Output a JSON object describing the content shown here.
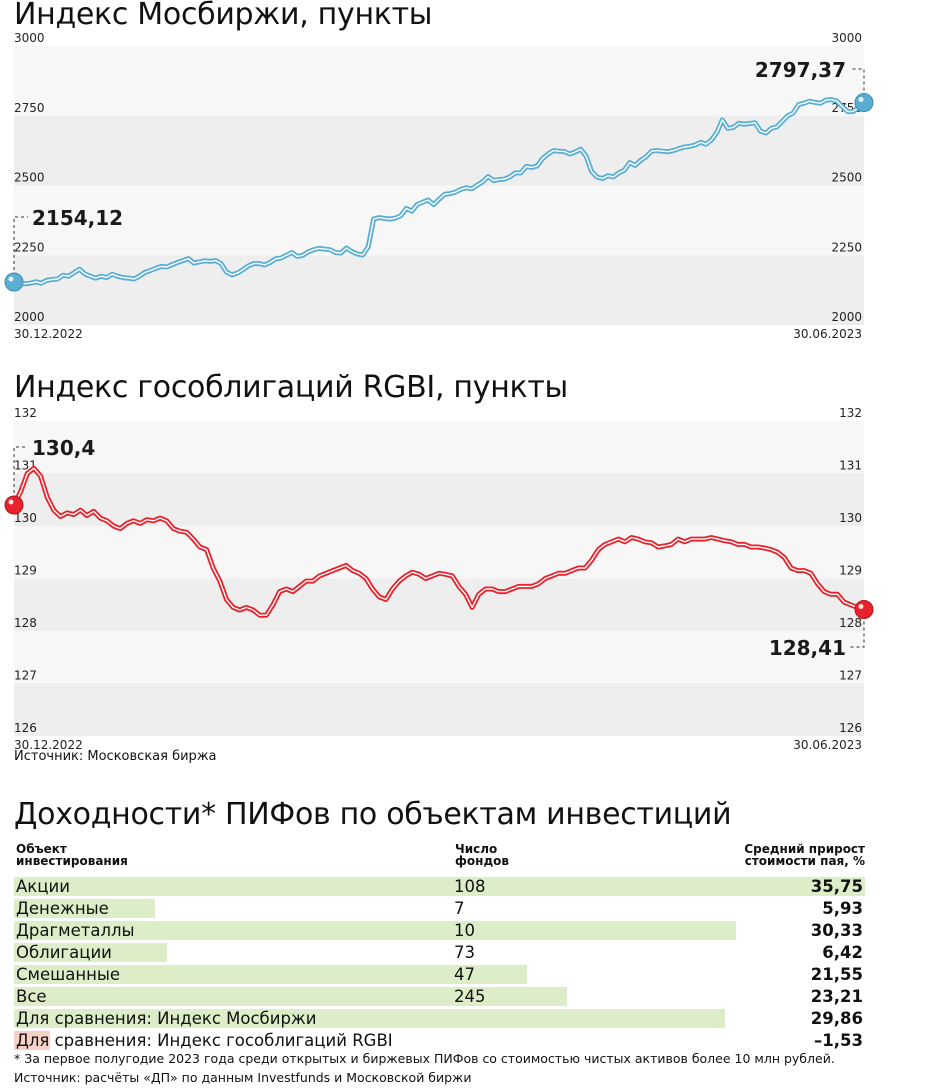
{
  "moex": {
    "title": "Индекс Мосбиржи, пункты",
    "y_ticks": [
      "3000",
      "2750",
      "2500",
      "2250",
      "2000"
    ],
    "x_start": "30.12.2022",
    "x_end": "30.06.2023",
    "start_label": "2154,12",
    "end_label": "2797,37"
  },
  "rgbi": {
    "title": "Индекс гособлигаций RGBI, пункты",
    "y_ticks": [
      "132",
      "131",
      "130",
      "129",
      "128",
      "127",
      "126"
    ],
    "x_start": "30.12.2022",
    "x_end": "30.06.2023",
    "start_label": "130,4",
    "end_label": "128,41",
    "source": "Источник: Московская биржа"
  },
  "table": {
    "title": "Доходности* ПИФов по объектам инвестиций",
    "col_object": [
      "Объект",
      "инвестирования"
    ],
    "col_count": [
      "Число",
      "фондов"
    ],
    "col_growth": [
      "Средний прирост",
      "стоимости пая, %"
    ],
    "rows": [
      {
        "name": "Акции",
        "count": "108",
        "value": "35,75"
      },
      {
        "name": "Денежные",
        "count": "7",
        "value": "5,93"
      },
      {
        "name": "Драгметаллы",
        "count": "10",
        "value": "30,33"
      },
      {
        "name": "Облигации",
        "count": "73",
        "value": "6,42"
      },
      {
        "name": "Смешанные",
        "count": "47",
        "value": "21,55"
      },
      {
        "name": "Все",
        "count": "245",
        "value": "23,21"
      },
      {
        "name": "Для сравнения: Индекс Мосбиржи",
        "count": "",
        "value": "29,86"
      },
      {
        "name": "Для сравнения: Индекс гособлигаций RGBI",
        "count": "",
        "value": "–1,53"
      }
    ],
    "footnote": "* За первое полугодие 2023 года среди открытых и биржевых ПИФов со стоимостью чистых активов более 10 млн рублей.",
    "source": "Источник: расчёты «ДП» по данным  Investfunds и Московской биржи"
  },
  "chart_data": [
    {
      "type": "line",
      "title": "Индекс Мосбиржи, пункты",
      "color": "#5aaed2",
      "x_range": [
        "30.12.2022",
        "30.06.2023"
      ],
      "ylim": [
        2000,
        3000
      ],
      "y_ticks": [
        2000,
        2250,
        2500,
        2750,
        3000
      ],
      "start_value": 2154.12,
      "end_value": 2797.37,
      "values": [
        2154.12,
        2150,
        2148,
        2150,
        2155,
        2150,
        2160,
        2163,
        2165,
        2178,
        2175,
        2187,
        2200,
        2183,
        2175,
        2168,
        2175,
        2170,
        2182,
        2175,
        2170,
        2168,
        2165,
        2175,
        2188,
        2195,
        2203,
        2210,
        2208,
        2216,
        2224,
        2231,
        2238,
        2222,
        2226,
        2230,
        2228,
        2231,
        2220,
        2190,
        2180,
        2186,
        2198,
        2212,
        2220,
        2220,
        2215,
        2224,
        2237,
        2240,
        2250,
        2260,
        2246,
        2250,
        2262,
        2270,
        2275,
        2272,
        2270,
        2260,
        2258,
        2276,
        2263,
        2255,
        2251,
        2280,
        2380,
        2385,
        2382,
        2380,
        2383,
        2392,
        2418,
        2408,
        2432,
        2440,
        2448,
        2432,
        2450,
        2468,
        2471,
        2476,
        2486,
        2492,
        2488,
        2501,
        2513,
        2532,
        2518,
        2521,
        2523,
        2531,
        2545,
        2545,
        2568,
        2565,
        2570,
        2596,
        2613,
        2625,
        2623,
        2622,
        2613,
        2620,
        2630,
        2605,
        2550,
        2530,
        2525,
        2535,
        2531,
        2545,
        2555,
        2582,
        2572,
        2590,
        2603,
        2623,
        2625,
        2623,
        2621,
        2625,
        2632,
        2638,
        2640,
        2645,
        2655,
        2648,
        2663,
        2690,
        2735,
        2705,
        2708,
        2723,
        2720,
        2722,
        2725,
        2695,
        2688,
        2705,
        2710,
        2730,
        2750,
        2760,
        2790,
        2795,
        2802,
        2798,
        2795,
        2806,
        2808,
        2803,
        2783,
        2765,
        2765,
        2780,
        2797.37
      ]
    },
    {
      "type": "line",
      "title": "Индекс гособлигаций RGBI, пункты",
      "color": "#e8222c",
      "x_range": [
        "30.12.2022",
        "30.06.2023"
      ],
      "ylim": [
        126,
        132
      ],
      "y_ticks": [
        126,
        127,
        128,
        129,
        130,
        131,
        132
      ],
      "start_value": 130.4,
      "end_value": 128.41,
      "values": [
        130.4,
        130.65,
        131.0,
        131.1,
        130.95,
        130.55,
        130.3,
        130.18,
        130.25,
        130.22,
        130.3,
        130.2,
        130.28,
        130.15,
        130.1,
        130.0,
        129.95,
        130.05,
        130.1,
        130.05,
        130.12,
        130.1,
        130.15,
        130.1,
        129.95,
        129.9,
        129.88,
        129.75,
        129.6,
        129.55,
        129.2,
        128.95,
        128.6,
        128.45,
        128.4,
        128.45,
        128.4,
        128.3,
        128.3,
        128.5,
        128.75,
        128.8,
        128.75,
        128.85,
        128.95,
        128.95,
        129.05,
        129.1,
        129.15,
        129.2,
        129.25,
        129.15,
        129.1,
        129.0,
        128.8,
        128.65,
        128.6,
        128.8,
        128.95,
        129.05,
        129.12,
        129.08,
        129.0,
        129.05,
        129.1,
        129.08,
        129.05,
        128.85,
        128.7,
        128.45,
        128.7,
        128.8,
        128.8,
        128.75,
        128.75,
        128.8,
        128.85,
        128.85,
        128.85,
        128.9,
        129.0,
        129.05,
        129.1,
        129.1,
        129.15,
        129.2,
        129.2,
        129.35,
        129.55,
        129.65,
        129.7,
        129.75,
        129.7,
        129.78,
        129.75,
        129.7,
        129.68,
        129.6,
        129.62,
        129.65,
        129.75,
        129.7,
        129.75,
        129.75,
        129.75,
        129.78,
        129.75,
        129.72,
        129.7,
        129.65,
        129.65,
        129.6,
        129.6,
        129.58,
        129.55,
        129.5,
        129.4,
        129.2,
        129.15,
        129.15,
        129.1,
        128.9,
        128.75,
        128.7,
        128.7,
        128.55,
        128.5,
        128.45,
        128.41
      ]
    },
    {
      "type": "bar",
      "title": "Доходности* ПИФов по объектам инвестиций",
      "orientation": "horizontal",
      "categories": [
        "Акции",
        "Денежные",
        "Драгметаллы",
        "Облигации",
        "Смешанные",
        "Все",
        "Для сравнения: Индекс Мосбиржи",
        "Для сравнения: Индекс гособлигаций RGBI"
      ],
      "fund_counts": [
        108,
        7,
        10,
        73,
        47,
        245,
        null,
        null
      ],
      "values": [
        35.75,
        5.93,
        30.33,
        6.42,
        21.55,
        23.21,
        29.86,
        -1.53
      ],
      "unit": "%",
      "colors": {
        "positive": "#dcedc8",
        "negative": "#f6d2c6"
      }
    }
  ]
}
